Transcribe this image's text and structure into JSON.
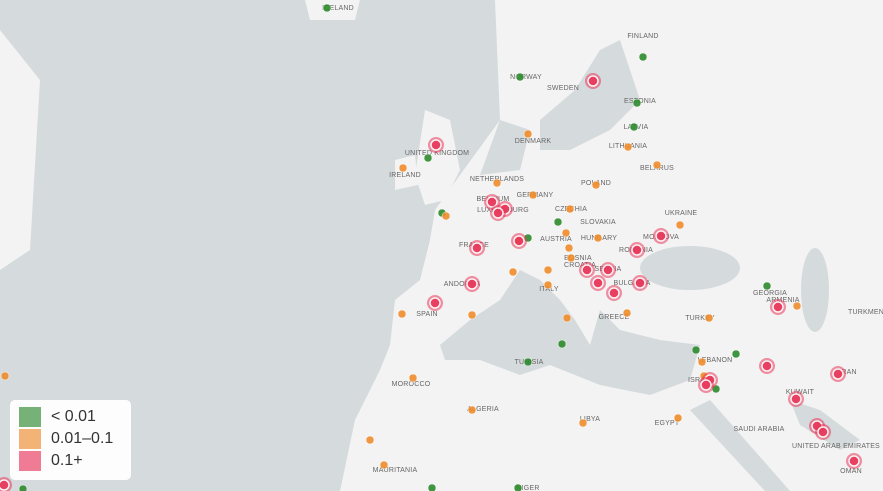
{
  "map": {
    "countries": [
      "ICELAND",
      "FINLAND",
      "NORWAY",
      "SWEDEN",
      "ESTONIA",
      "LATVIA",
      "LITHUANIA",
      "DENMARK",
      "UNITED KINGDOM",
      "IRELAND",
      "NETHERLANDS",
      "BELGIUM",
      "LUXEMBOURG",
      "GERMANY",
      "POLAND",
      "BELARUS",
      "CZECHIA",
      "SLOVAKIA",
      "UKRAINE",
      "AUSTRIA",
      "HUNGARY",
      "MOLDOVA",
      "FRANCE",
      "ROMANIA",
      "CROATIA",
      "BOSNIA",
      "SERBIA",
      "BULGARIA",
      "ANDORRA",
      "ITALY",
      "SPAIN",
      "GREECE",
      "TURKEY",
      "GEORGIA",
      "ARMENIA",
      "TURKMEN",
      "TUNISIA",
      "MOROCCO",
      "ALGERIA",
      "LIBYA",
      "EGYPT",
      "SAUDI ARABIA",
      "UNITED ARAB EMIRATES",
      "OMAN",
      "IRAN",
      "LEBANON",
      "ISRAEL",
      "KUWAIT",
      "MAURITANIA",
      "NIGER"
    ]
  },
  "legend": {
    "items": [
      {
        "label": "< 0.01",
        "color": "#2e8b2e"
      },
      {
        "label": "0.01–0.1",
        "color": "#f08c2c"
      },
      {
        "label": "0.1+",
        "color": "#e8385a"
      }
    ]
  }
}
